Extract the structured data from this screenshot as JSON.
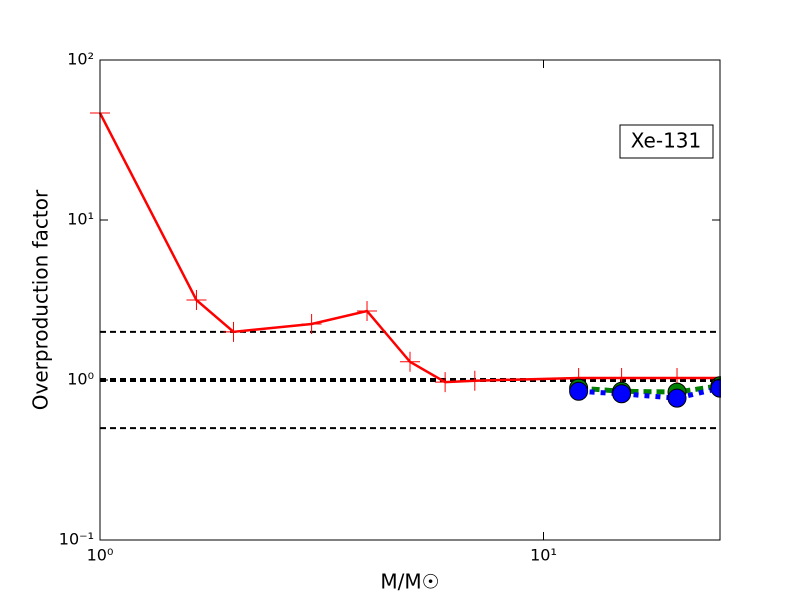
{
  "chart_data": {
    "type": "line",
    "xlabel": "M/M☉",
    "ylabel": "Overproduction factor",
    "annotation": "Xe-131",
    "xscale": "log",
    "yscale": "log",
    "xlim": [
      1,
      25
    ],
    "ylim": [
      0.1,
      100
    ],
    "xticks": [
      {
        "value": 1,
        "label": "10⁰"
      },
      {
        "value": 10,
        "label": "10¹"
      }
    ],
    "yticks": [
      {
        "value": 0.1,
        "label": "10⁻¹"
      },
      {
        "value": 1,
        "label": "10⁰"
      },
      {
        "value": 10,
        "label": "10¹"
      },
      {
        "value": 100,
        "label": "10²"
      }
    ],
    "hlines": [
      {
        "value": 2,
        "color": "#000000",
        "width": 2
      },
      {
        "value": 1,
        "color": "#000000",
        "width": 4
      },
      {
        "value": 0.5,
        "color": "#000000",
        "width": 2
      }
    ],
    "series": [
      {
        "color": "#ff0000",
        "marker": "plus",
        "dash": "solid",
        "x": [
          1,
          1.65,
          2,
          3,
          4,
          5,
          6,
          7,
          12,
          15,
          20,
          25
        ],
        "values": [
          46.6,
          3.16,
          2.0,
          2.24,
          2.7,
          1.3,
          0.97,
          0.99,
          1.03,
          1.03,
          1.03,
          1.03
        ]
      },
      {
        "color": "#008000",
        "marker": "circle",
        "dash": "dashed",
        "x": [
          12,
          15,
          20,
          25
        ],
        "values": [
          0.89,
          0.85,
          0.84,
          0.92
        ]
      },
      {
        "color": "#0000ff",
        "marker": "circle",
        "dash": "dotted",
        "x": [
          12,
          15,
          20,
          25
        ],
        "values": [
          0.85,
          0.82,
          0.77,
          0.89
        ]
      }
    ]
  }
}
